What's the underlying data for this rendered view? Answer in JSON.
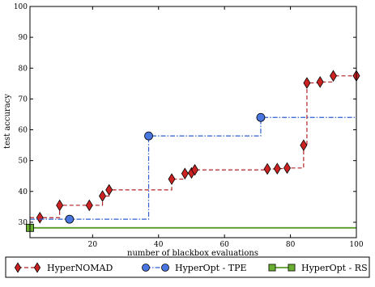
{
  "chart_data": {
    "type": "line",
    "xlabel": "number of blackbox evaluations",
    "ylabel": "test accuracy",
    "xlim": [
      1,
      100
    ],
    "ylim": [
      25,
      100
    ],
    "xticks": [
      20,
      40,
      60,
      80,
      100
    ],
    "yticks": [
      30,
      40,
      50,
      60,
      70,
      80,
      90,
      100
    ],
    "grid": false,
    "legend": "bottom",
    "series": [
      {
        "name": "HyperNOMAD",
        "color": "#b22222",
        "style": "step-dashed",
        "marker": "diamond",
        "x": [
          4,
          10,
          19,
          23,
          25,
          44,
          48,
          50,
          51,
          73,
          76,
          79,
          84,
          85,
          89,
          93,
          100
        ],
        "y": [
          31.5,
          35.5,
          35.5,
          38.5,
          40.5,
          44.0,
          45.8,
          46.0,
          47.0,
          47.3,
          47.4,
          47.6,
          55.0,
          75.2,
          75.5,
          77.5,
          77.5
        ]
      },
      {
        "name": "HyperOpt - TPE",
        "color": "#2f5fd0",
        "style": "step-dashdot",
        "marker": "circle",
        "x": [
          13,
          37,
          71
        ],
        "y": [
          31.0,
          58.0,
          64.0
        ]
      },
      {
        "name": "HyperOpt - RS",
        "color": "#5a9a28",
        "style": "solid",
        "marker": "square",
        "x": [
          1
        ],
        "y": [
          28.2
        ]
      }
    ]
  },
  "colors": {
    "hypernomad": "#b22222",
    "hypernomad_fill": "#cc2222",
    "tpe": "#2f5fd0",
    "tpe_fill": "#4a76e0",
    "rs": "#5a9a28",
    "rs_fill": "#6ab030"
  }
}
